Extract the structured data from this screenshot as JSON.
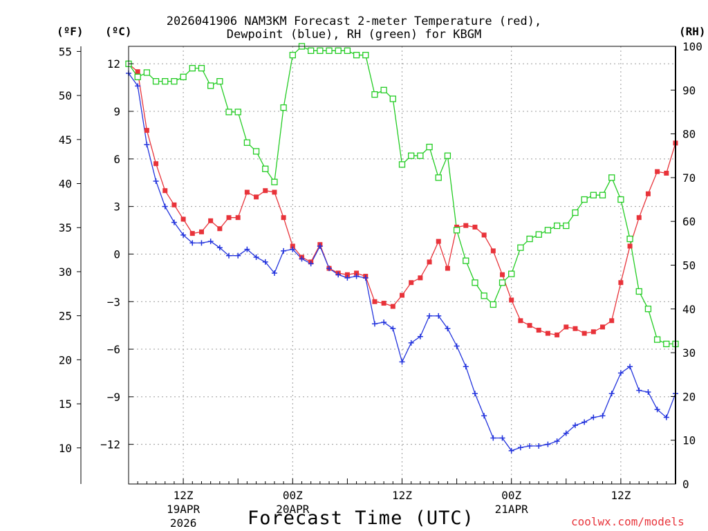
{
  "title_line1": "2026041906 NAM3KM Forecast 2-meter Temperature (red),",
  "title_line2": "Dewpoint (blue), RH (green) for KBGM",
  "units": {
    "f": "(ºF)",
    "c": "(ºC)",
    "rh": "(RH)"
  },
  "x_axis_title": "Forecast Time (UTC)",
  "credit": "coolwx.com/models",
  "colors": {
    "temperature": "#e8333a",
    "dewpoint": "#2233dd",
    "rh": "#22cc22",
    "grid": "#999999",
    "axis": "#000000"
  },
  "chart_data": {
    "type": "line",
    "title": "2026041906 NAM3KM Forecast 2-meter Temperature (red), Dewpoint (blue), RH (green) for KBGM",
    "xlabel": "Forecast Time (UTC)",
    "x_unit": "forecast hour from 2026-04-19 06Z",
    "x_range": [
      0,
      60
    ],
    "x_ticks": [
      {
        "hour": 6,
        "label": "12Z",
        "sub1": "19APR",
        "sub2": "2026"
      },
      {
        "hour": 18,
        "label": "00Z",
        "sub1": "20APR",
        "sub2": ""
      },
      {
        "hour": 30,
        "label": "12Z",
        "sub1": "",
        "sub2": ""
      },
      {
        "hour": 42,
        "label": "00Z",
        "sub1": "21APR",
        "sub2": ""
      },
      {
        "hour": 54,
        "label": "12Z",
        "sub1": "",
        "sub2": ""
      }
    ],
    "left_c_axis": {
      "label": "(ºC)",
      "range": [
        -14.5,
        13.1
      ],
      "ticks": [
        12,
        9,
        6,
        3,
        0,
        -3,
        -6,
        -9,
        -12
      ],
      "tick_labels": [
        "12",
        "9",
        "6",
        "3",
        "0",
        "−3",
        "−6",
        "−9",
        "−12"
      ]
    },
    "left_f_axis": {
      "label": "(ºF)",
      "ticks": [
        55,
        50,
        45,
        40,
        35,
        30,
        25,
        20,
        15,
        10
      ],
      "tick_labels": [
        "55",
        "50",
        "45",
        "40",
        "35",
        "30",
        "25",
        "20",
        "15",
        "10"
      ]
    },
    "right_rh_axis": {
      "label": "(RH)",
      "range": [
        0,
        100
      ],
      "ticks": [
        100,
        90,
        80,
        70,
        60,
        50,
        40,
        30,
        20,
        10,
        0
      ],
      "tick_labels": [
        "100",
        "90",
        "80",
        "70",
        "60",
        "50",
        "40",
        "30",
        "20",
        "10",
        "0"
      ]
    },
    "series": [
      {
        "name": "Temperature (°C)",
        "color": "#e8333a",
        "marker": "filled-square",
        "axis": "c",
        "values": [
          12.0,
          11.5,
          7.8,
          5.7,
          4.0,
          3.1,
          2.2,
          1.3,
          1.4,
          2.1,
          1.6,
          2.3,
          2.3,
          3.9,
          3.6,
          4.0,
          3.9,
          2.3,
          0.5,
          -0.2,
          -0.5,
          0.6,
          -0.9,
          -1.2,
          -1.3,
          -1.2,
          -1.4,
          -3.0,
          -3.1,
          -3.3,
          -2.6,
          -1.8,
          -1.5,
          -0.5,
          0.8,
          -0.9,
          1.7,
          1.8,
          1.7,
          1.2,
          0.2,
          -1.3,
          -2.9,
          -4.2,
          -4.5,
          -4.8,
          -5.0,
          -5.1,
          -4.6,
          -4.7,
          -5.0,
          -4.9,
          -4.6,
          -4.2,
          -1.8,
          0.5,
          2.3,
          3.8,
          5.2,
          5.1,
          7.0
        ]
      },
      {
        "name": "Dewpoint (°C)",
        "color": "#2233dd",
        "marker": "plus",
        "axis": "c",
        "values": [
          11.4,
          10.6,
          6.9,
          4.6,
          3.0,
          2.0,
          1.2,
          0.7,
          0.7,
          0.8,
          0.4,
          -0.1,
          -0.1,
          0.3,
          -0.2,
          -0.5,
          -1.2,
          0.2,
          0.3,
          -0.3,
          -0.6,
          0.5,
          -0.9,
          -1.3,
          -1.5,
          -1.4,
          -1.5,
          -4.4,
          -4.3,
          -4.7,
          -6.8,
          -5.6,
          -5.2,
          -3.9,
          -3.9,
          -4.7,
          -5.8,
          -7.1,
          -8.8,
          -10.2,
          -11.6,
          -11.6,
          -12.4,
          -12.2,
          -12.1,
          -12.1,
          -12.0,
          -11.8,
          -11.3,
          -10.8,
          -10.6,
          -10.3,
          -10.2,
          -8.8,
          -7.5,
          -7.1,
          -8.6,
          -8.7,
          -9.8,
          -10.3,
          -8.8
        ]
      },
      {
        "name": "RH (%)",
        "color": "#22cc22",
        "marker": "open-square",
        "axis": "rh",
        "values": [
          96,
          93,
          94,
          92,
          92,
          92,
          93,
          95,
          95,
          91,
          92,
          85,
          85,
          78,
          76,
          72,
          69,
          86,
          98,
          100,
          99,
          99,
          99,
          99,
          99,
          98,
          98,
          89,
          90,
          88,
          73,
          75,
          75,
          77,
          70,
          75,
          58,
          51,
          46,
          43,
          41,
          46,
          48,
          54,
          56,
          57,
          58,
          59,
          59,
          62,
          65,
          66,
          66,
          70,
          65,
          56,
          44,
          40,
          33,
          32,
          32
        ]
      }
    ]
  }
}
